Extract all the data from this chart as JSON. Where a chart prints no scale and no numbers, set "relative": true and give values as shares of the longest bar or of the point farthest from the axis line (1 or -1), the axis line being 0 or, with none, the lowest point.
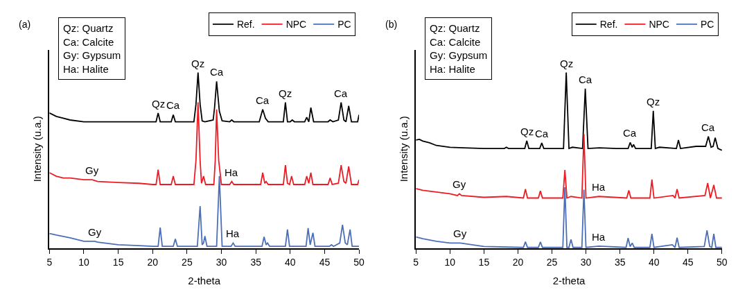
{
  "chart_data": [
    {
      "type": "line",
      "title": "(a)",
      "xlabel": "2-theta",
      "ylabel": "Intensity (u.a.)",
      "relative": true,
      "xlim": [
        5,
        50
      ],
      "xticks": [
        5,
        10,
        15,
        20,
        25,
        30,
        35,
        40,
        45,
        50
      ],
      "tick_labels": "x",
      "legend": "top right",
      "marker": "none",
      "line_style": "solid",
      "series": [
        {
          "name": "Ref.",
          "color": "#000000",
          "x": [
            5,
            6,
            7,
            8,
            10,
            12,
            15,
            18,
            20,
            20.5,
            20.8,
            21.1,
            22.7,
            23.0,
            23.3,
            26.0,
            26.3,
            26.6,
            26.9,
            27.2,
            27.6,
            28.8,
            29.0,
            29.3,
            29.7,
            30.1,
            31.2,
            31.5,
            31.8,
            35.5,
            36.0,
            36.4,
            36.8,
            39.0,
            39.3,
            39.6,
            40.0,
            40.3,
            40.6,
            42.1,
            42.4,
            42.7,
            43.0,
            43.4,
            45.5,
            45.8,
            46.2,
            47.0,
            47.4,
            47.8,
            48.1,
            48.5,
            48.9,
            49.8,
            50
          ],
          "values": [
            0.77,
            0.75,
            0.74,
            0.73,
            0.72,
            0.72,
            0.72,
            0.72,
            0.72,
            0.72,
            0.77,
            0.72,
            0.72,
            0.76,
            0.72,
            0.72,
            0.82,
            1.0,
            0.82,
            0.725,
            0.72,
            0.73,
            0.8,
            0.95,
            0.78,
            0.725,
            0.72,
            0.73,
            0.72,
            0.72,
            0.79,
            0.74,
            0.72,
            0.72,
            0.83,
            0.72,
            0.72,
            0.73,
            0.72,
            0.72,
            0.745,
            0.72,
            0.8,
            0.72,
            0.72,
            0.73,
            0.72,
            0.73,
            0.83,
            0.73,
            0.72,
            0.81,
            0.72,
            0.72,
            0.76
          ]
        },
        {
          "name": "NPC",
          "color": "#ed1c24",
          "x": [
            5,
            6,
            7,
            8,
            10,
            11.2,
            12,
            15,
            18,
            20,
            20.5,
            20.8,
            21.1,
            22.7,
            23.0,
            23.3,
            26.0,
            26.3,
            26.6,
            26.9,
            27.1,
            27.4,
            27.7,
            28.9,
            29.1,
            29.3,
            29.6,
            30.0,
            31.2,
            31.5,
            31.8,
            35.7,
            36.0,
            36.3,
            36.5,
            36.8,
            39.0,
            39.3,
            39.6,
            39.9,
            40.2,
            40.5,
            42.1,
            42.4,
            42.7,
            43.0,
            43.3,
            45.5,
            45.8,
            46.1,
            47.0,
            47.4,
            47.8,
            48.1,
            48.5,
            48.9,
            49.8,
            50
          ],
          "values": [
            0.43,
            0.41,
            0.4,
            0.4,
            0.39,
            0.39,
            0.38,
            0.374,
            0.37,
            0.363,
            0.363,
            0.447,
            0.363,
            0.363,
            0.41,
            0.363,
            0.363,
            0.5,
            0.83,
            0.5,
            0.37,
            0.41,
            0.363,
            0.363,
            0.5,
            0.79,
            0.5,
            0.363,
            0.363,
            0.38,
            0.363,
            0.363,
            0.43,
            0.37,
            0.38,
            0.363,
            0.363,
            0.473,
            0.37,
            0.363,
            0.41,
            0.363,
            0.363,
            0.41,
            0.37,
            0.43,
            0.363,
            0.363,
            0.4,
            0.363,
            0.37,
            0.473,
            0.38,
            0.37,
            0.466,
            0.363,
            0.363,
            0.39
          ]
        },
        {
          "name": "PC",
          "color": "#4a6fb8",
          "x": [
            5,
            6,
            8,
            10,
            11.6,
            12,
            15,
            18,
            20,
            20.8,
            21.1,
            21.4,
            23.0,
            23.3,
            23.6,
            26.5,
            26.9,
            27.2,
            27.4,
            27.6,
            27.9,
            29.3,
            29.7,
            30.1,
            31.4,
            31.7,
            32.0,
            35.9,
            36.2,
            36.5,
            36.7,
            37.0,
            39.3,
            39.6,
            39.9,
            42.3,
            42.6,
            42.9,
            43.3,
            43.6,
            45.7,
            46.0,
            46.3,
            47.2,
            47.6,
            48.0,
            48.3,
            48.7,
            49.0,
            50
          ],
          "values": [
            0.084,
            0.075,
            0.06,
            0.04,
            0.04,
            0.035,
            0.02,
            0.015,
            0.011,
            0.011,
            0.118,
            0.011,
            0.011,
            0.053,
            0.011,
            0.011,
            0.24,
            0.02,
            0.03,
            0.069,
            0.011,
            0.011,
            0.41,
            0.011,
            0.011,
            0.03,
            0.011,
            0.011,
            0.065,
            0.02,
            0.03,
            0.011,
            0.011,
            0.107,
            0.011,
            0.011,
            0.115,
            0.02,
            0.088,
            0.011,
            0.011,
            0.02,
            0.011,
            0.03,
            0.134,
            0.03,
            0.02,
            0.107,
            0.011,
            0.011
          ]
        }
      ],
      "annotations": [
        "Qz: Quartz\nCa: Calcite\nGy: Gypsum\nHa: Halite",
        {
          "text": "Qz",
          "x": 20.8,
          "y": 0.77
        },
        {
          "text": "Ca",
          "x": 23.0,
          "y": 0.76
        },
        {
          "text": "Qz",
          "x": 26.6,
          "y": 1.0
        },
        {
          "text": "Ca",
          "x": 29.3,
          "y": 0.95
        },
        {
          "text": "Ca",
          "x": 36.0,
          "y": 0.79
        },
        {
          "text": "Qz",
          "x": 39.3,
          "y": 0.83
        },
        {
          "text": "Ca",
          "x": 47.4,
          "y": 0.83
        },
        {
          "text": "Gy",
          "x": 11.2,
          "y": 0.39
        },
        {
          "text": "Ha",
          "x": 31.5,
          "y": 0.38
        },
        {
          "text": "Gy",
          "x": 11.6,
          "y": 0.04
        },
        {
          "text": "Ha",
          "x": 31.7,
          "y": 0.03
        }
      ]
    },
    {
      "type": "line",
      "title": "(b)",
      "xlabel": "2-theta",
      "ylabel": "Intensity (u.a.)",
      "relative": true,
      "xlim": [
        5,
        50
      ],
      "xticks": [
        5,
        10,
        15,
        20,
        25,
        30,
        35,
        40,
        45,
        50
      ],
      "tick_labels": "x",
      "legend": "top right",
      "marker": "none",
      "line_style": "solid",
      "series": [
        {
          "name": "Ref.",
          "color": "#000000",
          "x": [
            5,
            5.5,
            6,
            7,
            8,
            10,
            12,
            15,
            18,
            18.3,
            18.6,
            21.0,
            21.3,
            21.6,
            23.2,
            23.5,
            23.8,
            26.7,
            27.1,
            27.5,
            28.0,
            29.5,
            29.9,
            30.3,
            32,
            34.5,
            36.2,
            36.5,
            36.8,
            37.0,
            37.3,
            39.6,
            39.9,
            40.2,
            40.8,
            43.3,
            43.6,
            43.9,
            46.2,
            47.6,
            48.0,
            48.4,
            48.7,
            49.0,
            49.4,
            50
          ],
          "values": [
            0.616,
            0.62,
            0.61,
            0.6,
            0.585,
            0.575,
            0.572,
            0.568,
            0.568,
            0.575,
            0.568,
            0.568,
            0.612,
            0.568,
            0.568,
            0.599,
            0.568,
            0.568,
            1.0,
            0.568,
            0.575,
            0.568,
            0.908,
            0.568,
            0.572,
            0.568,
            0.568,
            0.602,
            0.575,
            0.59,
            0.568,
            0.568,
            0.782,
            0.568,
            0.575,
            0.568,
            0.616,
            0.568,
            0.58,
            0.58,
            0.636,
            0.575,
            0.58,
            0.629,
            0.568,
            0.558
          ]
        },
        {
          "name": "NPC",
          "color": "#ed1c24",
          "x": [
            5,
            6,
            8,
            10,
            11.1,
            11.4,
            11.7,
            15,
            18.3,
            20.8,
            21.1,
            21.4,
            23.0,
            23.3,
            23.6,
            26.6,
            26.9,
            27.2,
            27.8,
            29.4,
            29.7,
            30.0,
            31.9,
            36.0,
            36.3,
            36.6,
            39.4,
            39.7,
            40.0,
            42.8,
            43.1,
            43.4,
            43.7,
            47.5,
            47.9,
            48.3,
            48.8,
            49.2,
            50
          ],
          "values": [
            0.34,
            0.33,
            0.32,
            0.31,
            0.3,
            0.31,
            0.3,
            0.29,
            0.295,
            0.286,
            0.337,
            0.286,
            0.286,
            0.327,
            0.286,
            0.286,
            0.446,
            0.286,
            0.295,
            0.286,
            0.65,
            0.286,
            0.295,
            0.286,
            0.33,
            0.286,
            0.286,
            0.391,
            0.286,
            0.3,
            0.286,
            0.337,
            0.286,
            0.3,
            0.371,
            0.286,
            0.36,
            0.286,
            0.286
          ]
        },
        {
          "name": "PC",
          "color": "#4a6fb8",
          "x": [
            5,
            6,
            8,
            10,
            11.5,
            15,
            20.8,
            21.1,
            21.4,
            23.0,
            23.3,
            23.6,
            26.6,
            26.9,
            27.2,
            27.5,
            27.8,
            28.1,
            29.4,
            29.7,
            30.0,
            31.9,
            35.9,
            36.2,
            36.5,
            36.8,
            37.1,
            39.4,
            39.7,
            40.0,
            42.7,
            43.1,
            43.4,
            43.7,
            47.4,
            47.8,
            48.2,
            48.5,
            48.8,
            49.1,
            50
          ],
          "values": [
            0.065,
            0.055,
            0.04,
            0.03,
            0.03,
            0.01,
            0.005,
            0.037,
            0.005,
            0.005,
            0.036,
            0.005,
            0.005,
            0.347,
            0.005,
            0.005,
            0.05,
            0.005,
            0.005,
            0.333,
            0.005,
            0.012,
            0.005,
            0.058,
            0.01,
            0.03,
            0.005,
            0.005,
            0.082,
            0.005,
            0.02,
            0.005,
            0.06,
            0.005,
            0.01,
            0.102,
            0.01,
            0.005,
            0.082,
            0.005,
            0.005
          ]
        }
      ],
      "annotations": [
        "Qz: Quartz\nCa: Calcite\nGy: Gypsum\nHa: Halite",
        {
          "text": "Qz",
          "x": 21.3,
          "y": 0.612
        },
        {
          "text": "Ca",
          "x": 23.5,
          "y": 0.599
        },
        {
          "text": "Qz",
          "x": 27.1,
          "y": 1.0
        },
        {
          "text": "Ca",
          "x": 29.9,
          "y": 0.908
        },
        {
          "text": "Ca",
          "x": 36.5,
          "y": 0.602
        },
        {
          "text": "Qz",
          "x": 39.9,
          "y": 0.782
        },
        {
          "text": "Ca",
          "x": 48.0,
          "y": 0.636
        },
        {
          "text": "Gy",
          "x": 11.4,
          "y": 0.31
        },
        {
          "text": "Ha",
          "x": 31.9,
          "y": 0.295
        },
        {
          "text": "Gy",
          "x": 11.5,
          "y": 0.03
        },
        {
          "text": "Ha",
          "x": 31.9,
          "y": 0.012
        }
      ]
    }
  ]
}
